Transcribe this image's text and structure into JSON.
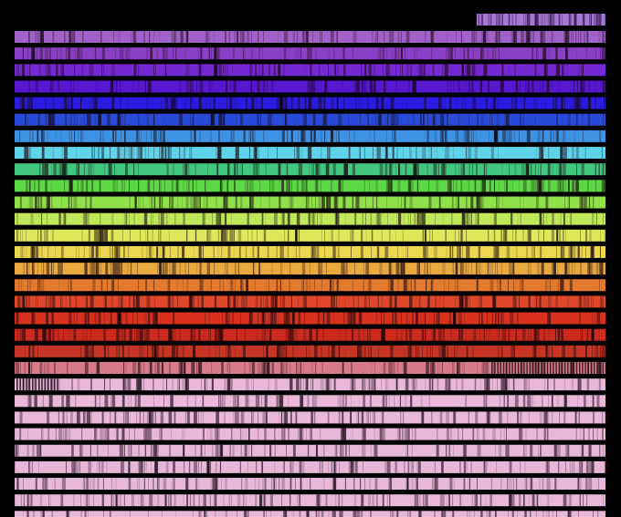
{
  "image": {
    "subject": "solar-spectrum",
    "background_color": "#000000",
    "band_colors": [
      "#a777d6",
      "#a062c9",
      "#8b3ec6",
      "#7428d1",
      "#5617cf",
      "#2b1be0",
      "#274bd8",
      "#3d92e4",
      "#5ed3ea",
      "#41c87e",
      "#5dd845",
      "#8fe24a",
      "#c0e85a",
      "#dde85a",
      "#ecd84e",
      "#e9a93f",
      "#e47a2d",
      "#e0472a",
      "#d8321f",
      "#cc2a1c",
      "#c63524",
      "#d97a8a",
      "#e9b7d8",
      "#eab9da",
      "#eab9da",
      "#e8b8d9",
      "#e8b8d9",
      "#e7b7d8",
      "#e8b8d9",
      "#e8b8d9",
      "#e8b8d9",
      "#e8b8d9"
    ]
  }
}
